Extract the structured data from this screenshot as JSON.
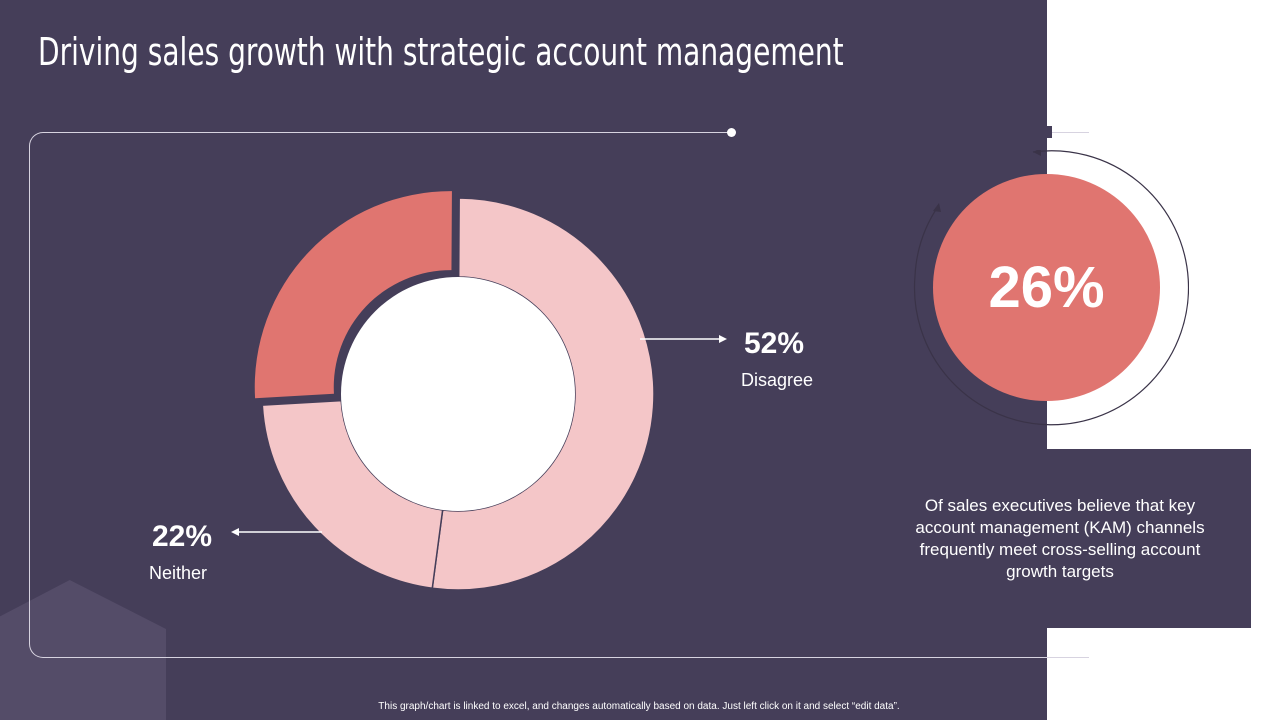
{
  "title": "Driving sales growth with strategic account management",
  "chart_data": {
    "type": "pie",
    "variant": "donut",
    "slices": [
      {
        "label": "Disagree",
        "value": 52,
        "display": "52%",
        "color": "#f4c6c8"
      },
      {
        "label": "Neither",
        "value": 22,
        "display": "22%",
        "color": "#f4c6c8"
      },
      {
        "label": "",
        "value": 26,
        "display": "",
        "color": "#e07570"
      }
    ]
  },
  "labels": {
    "disagree_value": "52%",
    "disagree_label": "Disagree",
    "neither_value": "22%",
    "neither_label": "Neither"
  },
  "callout": {
    "percent": "26%",
    "text": "Of sales executives believe that key account management (KAM) channels frequently meet cross-selling account growth targets"
  },
  "footer": "This graph/chart is linked to excel, and changes automatically based on data. Just left click on it and select “edit data”.",
  "colors": {
    "background": "#453e59",
    "accent": "#e07570",
    "light_accent": "#f4c6c8"
  }
}
